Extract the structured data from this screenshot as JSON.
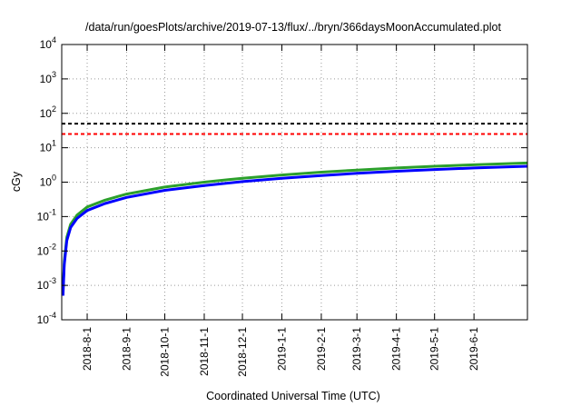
{
  "chart_data": {
    "type": "line",
    "title": "/data/run/goesPlots/archive/2019-07-13/flux/../bryn/366daysMoonAccumulated.plot",
    "xlabel": "Coordinated Universal Time (UTC)",
    "ylabel": "cGy",
    "y_scale": "log",
    "ylim": [
      0.0001,
      10000
    ],
    "xlim": [
      "2018-07-12",
      "2019-07-13"
    ],
    "grid": true,
    "grid_style": "dotted",
    "x_ticks": [
      "2018-8-1",
      "2018-9-1",
      "2018-10-1",
      "2018-11-1",
      "2018-12-1",
      "2019-1-1",
      "2019-2-1",
      "2019-3-1",
      "2019-4-1",
      "2019-5-1",
      "2019-6-1"
    ],
    "y_ticks": [
      {
        "base": "10",
        "exp": "-4",
        "value": 0.0001
      },
      {
        "base": "10",
        "exp": "-3",
        "value": 0.001
      },
      {
        "base": "10",
        "exp": "-2",
        "value": 0.01
      },
      {
        "base": "10",
        "exp": "-1",
        "value": 0.1
      },
      {
        "base": "10",
        "exp": "0",
        "value": 1
      },
      {
        "base": "10",
        "exp": "1",
        "value": 10
      },
      {
        "base": "10",
        "exp": "2",
        "value": 100
      },
      {
        "base": "10",
        "exp": "3",
        "value": 1000
      },
      {
        "base": "10",
        "exp": "4",
        "value": 10000
      }
    ],
    "reference_lines": [
      {
        "value": 50,
        "color": "#000000",
        "style": "dashed"
      },
      {
        "value": 25,
        "color": "#ff0000",
        "style": "dashed"
      }
    ],
    "series": [
      {
        "color": "#2ca02c",
        "x": [
          "2018-07-13",
          "2018-07-14",
          "2018-07-16",
          "2018-07-19",
          "2018-07-24",
          "2018-08-01",
          "2018-08-15",
          "2018-09-01",
          "2018-10-01",
          "2018-11-01",
          "2018-12-01",
          "2019-01-01",
          "2019-02-01",
          "2019-03-01",
          "2019-04-01",
          "2019-05-01",
          "2019-06-01",
          "2019-07-13"
        ],
        "values": [
          0.0007,
          0.005,
          0.025,
          0.06,
          0.11,
          0.19,
          0.3,
          0.45,
          0.72,
          1.0,
          1.3,
          1.62,
          1.95,
          2.25,
          2.58,
          2.9,
          3.2,
          3.6
        ]
      },
      {
        "color": "#0000ff",
        "x": [
          "2018-07-13",
          "2018-07-14",
          "2018-07-16",
          "2018-07-19",
          "2018-07-24",
          "2018-08-01",
          "2018-08-15",
          "2018-09-01",
          "2018-10-01",
          "2018-11-01",
          "2018-12-01",
          "2019-01-01",
          "2019-02-01",
          "2019-03-01",
          "2019-04-01",
          "2019-05-01",
          "2019-06-01",
          "2019-07-13"
        ],
        "values": [
          0.0005,
          0.004,
          0.02,
          0.048,
          0.088,
          0.15,
          0.24,
          0.36,
          0.58,
          0.8,
          1.04,
          1.3,
          1.56,
          1.8,
          2.07,
          2.33,
          2.58,
          2.9
        ]
      }
    ]
  }
}
